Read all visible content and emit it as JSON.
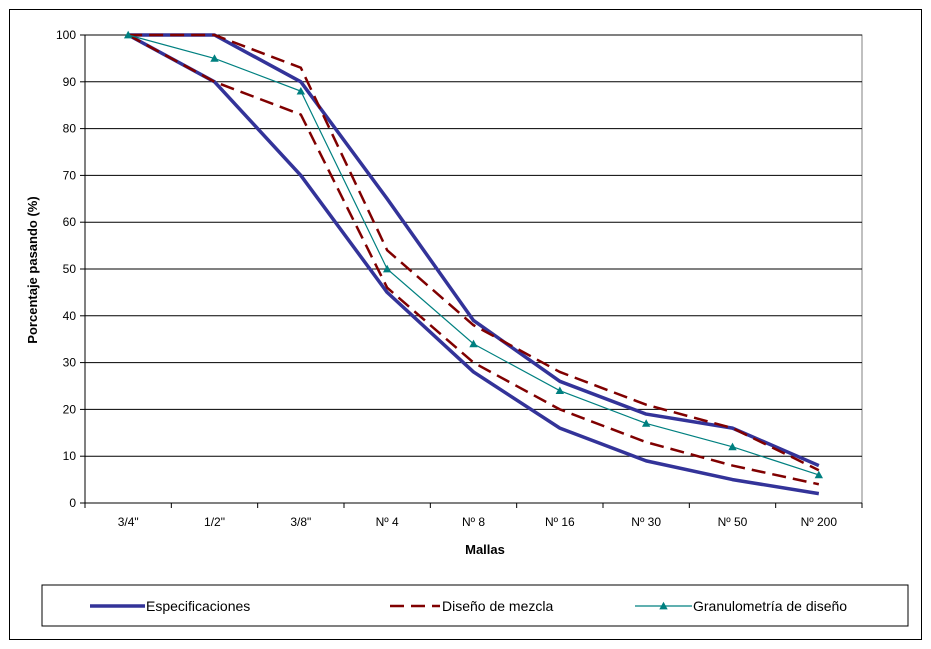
{
  "chart_data": {
    "type": "line",
    "title": "",
    "xlabel": "Mallas",
    "ylabel": "Porcentaje pasando (%)",
    "categories": [
      "3/4\"",
      "1/2\"",
      "3/8\"",
      "Nº 4",
      "Nº 8",
      "Nº 16",
      "Nº 30",
      "Nº 50",
      "Nº 200"
    ],
    "ylim": [
      0,
      100
    ],
    "yticks": [
      0,
      10,
      20,
      30,
      40,
      50,
      60,
      70,
      80,
      90,
      100
    ],
    "grid": "horizontal",
    "legend_position": "bottom",
    "series": [
      {
        "name": "Especificaciones",
        "group": "spec",
        "style": "solid-thick",
        "color": "#333399",
        "values": [
          100,
          100,
          90,
          65,
          39,
          26,
          19,
          16,
          8
        ]
      },
      {
        "name": "Especificaciones",
        "group": "spec",
        "style": "solid-thick",
        "color": "#333399",
        "values": [
          100,
          90,
          70,
          45,
          28,
          16,
          9,
          5,
          2
        ]
      },
      {
        "name": "Diseño de mezcla",
        "group": "mix",
        "style": "dashed",
        "color": "#800000",
        "values": [
          100,
          100,
          93,
          54,
          38,
          28,
          21,
          16,
          7
        ]
      },
      {
        "name": "Diseño de mezcla",
        "group": "mix",
        "style": "dashed",
        "color": "#800000",
        "values": [
          100,
          90,
          83,
          46,
          30,
          20,
          13,
          8,
          4
        ]
      },
      {
        "name": "Granulometría de diseño",
        "group": "gran",
        "style": "thin-triangle",
        "color": "#008080",
        "values": [
          100,
          95,
          88,
          50,
          34,
          24,
          17,
          12,
          6
        ]
      }
    ],
    "legend": [
      {
        "label": "Especificaciones",
        "style": "solid-thick",
        "color": "#333399"
      },
      {
        "label": "Diseño de mezcla",
        "style": "dashed",
        "color": "#800000"
      },
      {
        "label": "Granulometría de diseño",
        "style": "thin-triangle",
        "color": "#008080"
      }
    ]
  }
}
